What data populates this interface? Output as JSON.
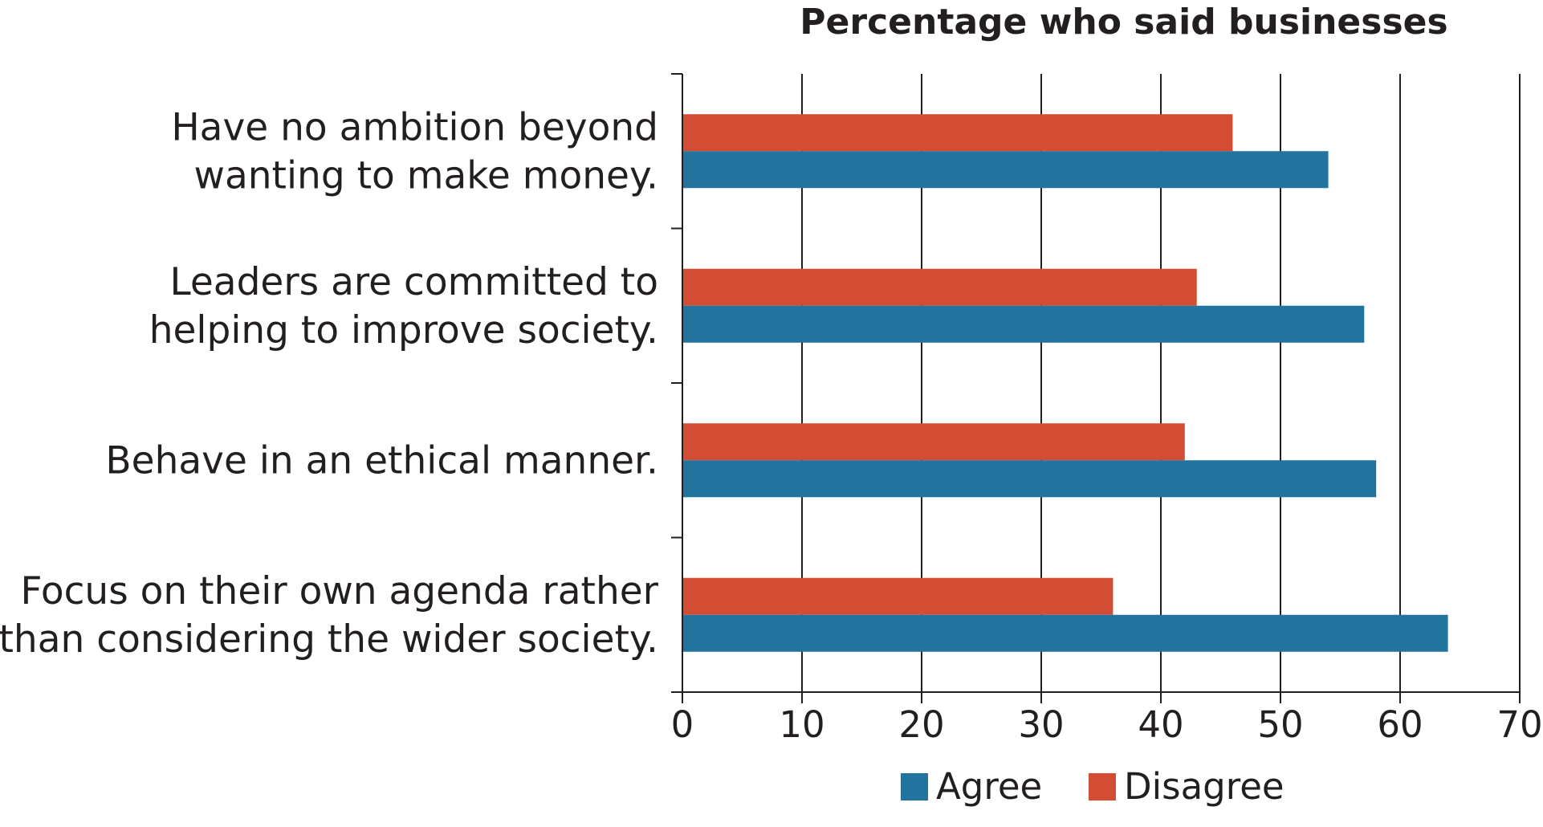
{
  "chart_data": {
    "type": "bar",
    "orientation": "horizontal",
    "title": "Percentage who said businesses",
    "categories": [
      [
        "Have no ambition beyond",
        "wanting to make money."
      ],
      [
        "Leaders are committed to",
        "helping to improve society."
      ],
      [
        "Behave in an ethical manner."
      ],
      [
        "Focus on their own agenda rather",
        "than considering the wider society."
      ]
    ],
    "series": [
      {
        "name": "Disagree",
        "color": "#d24d33",
        "values": [
          46,
          43,
          42,
          36
        ]
      },
      {
        "name": "Agree",
        "color": "#23739f",
        "values": [
          54,
          57,
          58,
          64
        ]
      }
    ],
    "xlim": [
      0,
      70
    ],
    "xticks": [
      0,
      10,
      20,
      30,
      40,
      50,
      60,
      70
    ],
    "grid": true,
    "legend": {
      "placement": "bottom-center",
      "items": [
        {
          "name": "Agree",
          "color": "#23739f"
        },
        {
          "name": "Disagree",
          "color": "#d24d33"
        }
      ]
    }
  }
}
